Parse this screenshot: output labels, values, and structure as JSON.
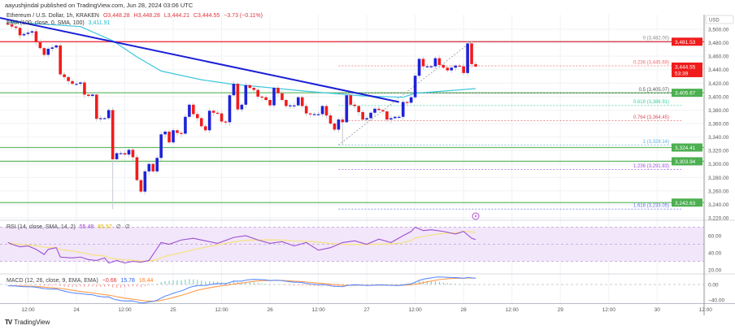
{
  "header": {
    "published": "aayushjindal published on TradingView.com, Jun 28, 2024 03:06 UTC",
    "symbol": "Ethereum / U.S. Dollar, 1h, KRAKEN",
    "open": "O3,448.28",
    "high": "H3,448.28",
    "low": "L3,444.21",
    "close": "C3,444.55",
    "change": "−3.73 (−0.11%)",
    "ma_label": "EMA (100, close, 0, SMA, 100)",
    "ma_value": "3,411.91"
  },
  "rsi_legend": {
    "label": "RSI (14, close, SMA, 14, 2)",
    "rsi": "55.48",
    "sma": "65.57",
    "extra1": "∅",
    "extra2": "∅"
  },
  "macd_legend": {
    "label": "MACD (12, 26, close, 9, EMA, EMA)",
    "hist": "−0.66",
    "macd": "15.78",
    "signal": "16.44"
  },
  "logo": {
    "text": "TradingView",
    "icon": "tradingview-logo-icon"
  },
  "colors": {
    "up": "#1e22d8",
    "down": "#f21b1b",
    "trendline": "#1a1fd6",
    "ma": "#3fc7de",
    "resistance": "#f23645",
    "support": "#66bb6a",
    "rsi": "#9c4fd0",
    "rsi_sma": "#f5e27a",
    "macd": "#5b8cff",
    "signal": "#ff9a4a",
    "rsi_band": "#f2e6fb"
  },
  "chart_data": [
    {
      "type": "candlestick",
      "title": "Ethereum / U.S. Dollar, 1h, KRAKEN",
      "currency_label": "USD",
      "start": "2024-06-23T07:00",
      "interval": "1h",
      "closes": [
        3507,
        3504,
        3502,
        3491,
        3493,
        3495,
        3497,
        3481,
        3472,
        3462,
        3471,
        3473,
        3476,
        3433,
        3429,
        3423,
        3419,
        3419,
        3421,
        3403,
        3401,
        3403,
        3367,
        3368,
        3368,
        3380,
        3307,
        3316,
        3316,
        3314,
        3321,
        3310,
        3276,
        3259,
        3289,
        3300,
        3289,
        3309,
        3344,
        3348,
        3332,
        3350,
        3346,
        3345,
        3370,
        3388,
        3374,
        3368,
        3356,
        3350,
        3379,
        3376,
        3375,
        3363,
        3362,
        3402,
        3419,
        3381,
        3388,
        3417,
        3413,
        3410,
        3400,
        3399,
        3395,
        3387,
        3413,
        3405,
        3395,
        3386,
        3387,
        3387,
        3399,
        3386,
        3375,
        3374,
        3374,
        3374,
        3386,
        3372,
        3360,
        3351,
        3366,
        3362,
        3402,
        3388,
        3386,
        3377,
        3366,
        3368,
        3376,
        3382,
        3380,
        3378,
        3366,
        3368,
        3370,
        3370,
        3392,
        3391,
        3399,
        3431,
        3456,
        3445,
        3445,
        3445,
        3457,
        3447,
        3443,
        3439,
        3443,
        3446,
        3445,
        3435,
        3479,
        3448.28,
        3444.55
      ],
      "notable_extremes": [
        [
          "2024-06-24T09:00",
          "low",
          3233
        ],
        [
          "2024-06-26T18:00",
          "low",
          3328.14
        ],
        [
          "2024-06-28T01:00",
          "high",
          3482
        ],
        [
          "2024-06-28T03:00",
          "low",
          3444.21
        ]
      ],
      "ylim": [
        3210,
        3520
      ],
      "y_ticks": [
        "3,500.00",
        "3,480.00",
        "3,460.00",
        "3,440.00",
        "3,420.00",
        "3,400.00",
        "3,380.00",
        "3,360.00",
        "3,340.00",
        "3,320.00",
        "3,300.00",
        "3,280.00",
        "3,260.00",
        "3,240.00",
        "3,220.00"
      ],
      "x_ticks": [
        [
          "2024-06-23T12:00",
          "12:00"
        ],
        [
          "2024-06-24T00:00",
          "24"
        ],
        [
          "2024-06-24T12:00",
          "12:00"
        ],
        [
          "2024-06-25T00:00",
          "25"
        ],
        [
          "2024-06-25T12:00",
          "12:00"
        ],
        [
          "2024-06-26T00:00",
          "26"
        ],
        [
          "2024-06-26T12:00",
          "12:00"
        ],
        [
          "2024-06-27T00:00",
          "27"
        ],
        [
          "2024-06-27T12:00",
          "12:00"
        ],
        [
          "2024-06-28T00:00",
          "28"
        ],
        [
          "2024-06-28T12:00",
          "12:00"
        ],
        [
          "2024-06-29T00:00",
          "29"
        ],
        [
          "2024-06-29T12:00",
          "12:00"
        ],
        [
          "2024-06-30T00:00",
          "30"
        ],
        [
          "2024-06-30T12:00",
          "12:00"
        ]
      ],
      "moving_average": [
        [
          "2024-06-23T07:00",
          3511
        ],
        [
          "2024-06-24T01:00",
          3504
        ],
        [
          "2024-06-24T09:00",
          3483
        ],
        [
          "2024-06-24T15:00",
          3459
        ],
        [
          "2024-06-24T21:00",
          3438
        ],
        [
          "2024-06-25T07:00",
          3425
        ],
        [
          "2024-06-25T14:00",
          3419
        ],
        [
          "2024-06-26T09:00",
          3408
        ],
        [
          "2024-06-26T23:00",
          3401
        ],
        [
          "2024-06-27T09:00",
          3399
        ],
        [
          "2024-06-27T12:00",
          3405
        ],
        [
          "2024-06-28T03:00",
          3411.91
        ]
      ],
      "trendline": [
        [
          "2024-06-23T05:00",
          3517
        ],
        [
          "2024-06-27T08:00",
          3392
        ]
      ],
      "horizontal_lines": [
        {
          "price": 3481.53,
          "label": "3,481.53",
          "kind": "resistance"
        },
        {
          "price": 3405.67,
          "label": "3,405.67",
          "kind": "support"
        },
        {
          "price": 3324.41,
          "label": "3,324.41",
          "kind": "support"
        },
        {
          "price": 3303.94,
          "label": "3,303.94",
          "kind": "support"
        },
        {
          "price": 3242.63,
          "label": "3,242.63",
          "kind": "support"
        }
      ],
      "last_price": {
        "price": 3444.55,
        "label": "3,444.55",
        "countdown": "53:39"
      },
      "fibonacci": {
        "from": [
          "2024-06-26T17:00",
          3328.14
        ],
        "to": [
          "2024-06-28T02:00",
          3482.0
        ],
        "extends_to": "2024-06-30T06:00",
        "levels": [
          {
            "ratio": "0",
            "price": 3482.0,
            "label": "0 (3,482.00)",
            "color": "#888888"
          },
          {
            "ratio": "0.236",
            "price": 3445.69,
            "label": "0.236 (3,445.69)",
            "color": "#f26b6b"
          },
          {
            "ratio": "0.5",
            "price": 3405.07,
            "label": "0.5 (3,405.07)",
            "color": "#555555"
          },
          {
            "ratio": "0.618",
            "price": 3386.91,
            "label": "0.618 (3,386.91)",
            "color": "#3bd1a0"
          },
          {
            "ratio": "0.764",
            "price": 3364.45,
            "label": "0.764 (3,364.45)",
            "color": "#e0505a"
          },
          {
            "ratio": "1",
            "price": 3328.14,
            "label": "1 (3,328.14)",
            "color": "#5aaee6"
          },
          {
            "ratio": "1.236",
            "price": 3291.83,
            "label": "1.236 (3,291.83)",
            "color": "#a64ee0"
          },
          {
            "ratio": "1.618",
            "price": 3233.05,
            "label": "1.618 (3,233.05)",
            "color": "#5b6ee6"
          }
        ]
      },
      "event_icon": "lightning-icon"
    },
    {
      "type": "line",
      "title": "RSI (14, close, SMA, 14, 2)",
      "ylim": [
        14,
        78
      ],
      "band": [
        30,
        70
      ],
      "y_ticks": [
        "60.00",
        "40.00",
        "20.00"
      ],
      "rsi": [
        [
          "2024-06-23T07:00",
          52
        ],
        [
          "2024-06-23T08:00",
          50
        ],
        [
          "2024-06-23T10:00",
          47
        ],
        [
          "2024-06-23T12:00",
          48
        ],
        [
          "2024-06-23T14:00",
          44
        ],
        [
          "2024-06-23T16:00",
          38
        ],
        [
          "2024-06-23T17:00",
          44
        ],
        [
          "2024-06-23T19:00",
          46
        ],
        [
          "2024-06-23T20:00",
          35
        ],
        [
          "2024-06-23T23:00",
          34
        ],
        [
          "2024-06-24T01:00",
          35
        ],
        [
          "2024-06-24T03:00",
          32
        ],
        [
          "2024-06-24T05:00",
          31
        ],
        [
          "2024-06-24T07:00",
          34
        ],
        [
          "2024-06-24T08:00",
          28
        ],
        [
          "2024-06-24T10:00",
          31
        ],
        [
          "2024-06-24T12:00",
          28
        ],
        [
          "2024-06-24T14:00",
          30
        ],
        [
          "2024-06-24T16:00",
          29
        ],
        [
          "2024-06-24T18:00",
          31
        ],
        [
          "2024-06-24T20:00",
          45
        ],
        [
          "2024-06-24T21:00",
          52
        ],
        [
          "2024-06-24T23:00",
          50
        ],
        [
          "2024-06-25T02:00",
          55
        ],
        [
          "2024-06-25T05:00",
          57
        ],
        [
          "2024-06-25T08:00",
          54
        ],
        [
          "2024-06-25T11:00",
          51
        ],
        [
          "2024-06-25T15:00",
          58
        ],
        [
          "2024-06-25T18:00",
          60
        ],
        [
          "2024-06-25T21:00",
          55
        ],
        [
          "2024-06-26T00:00",
          51
        ],
        [
          "2024-06-26T03:00",
          53
        ],
        [
          "2024-06-26T06:00",
          48
        ],
        [
          "2024-06-26T09:00",
          52
        ],
        [
          "2024-06-26T12:00",
          43
        ],
        [
          "2024-06-26T15:00",
          46
        ],
        [
          "2024-06-26T18:00",
          52
        ],
        [
          "2024-06-26T21:00",
          54
        ],
        [
          "2024-06-27T00:00",
          50
        ],
        [
          "2024-06-27T03:00",
          56
        ],
        [
          "2024-06-27T06:00",
          52
        ],
        [
          "2024-06-27T09:00",
          60
        ],
        [
          "2024-06-27T11:00",
          65
        ],
        [
          "2024-06-27T12:00",
          70
        ],
        [
          "2024-06-27T14:00",
          66
        ],
        [
          "2024-06-27T16:00",
          67
        ],
        [
          "2024-06-27T19:00",
          65
        ],
        [
          "2024-06-27T22:00",
          62
        ],
        [
          "2024-06-28T00:00",
          65
        ],
        [
          "2024-06-28T02:00",
          57
        ],
        [
          "2024-06-28T03:00",
          55.48
        ]
      ]
    },
    {
      "type": "line",
      "title": "MACD (12, 26, close, 9, EMA, EMA)",
      "y_ticks": [
        "0.00",
        "−40.00"
      ],
      "last": {
        "histogram": -0.66,
        "macd": 15.78,
        "signal": 16.44
      }
    }
  ]
}
